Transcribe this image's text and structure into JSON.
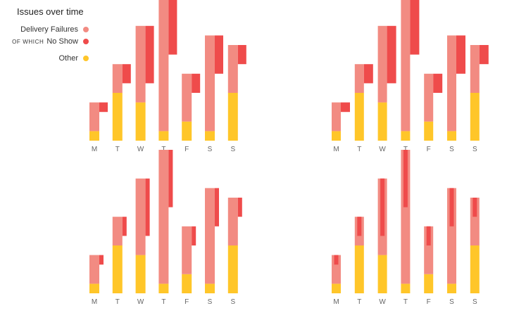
{
  "title": "Issues over time",
  "legend": {
    "delivery": "Delivery Failures",
    "prefix": "OF WHICH",
    "noshow": "No Show",
    "other": "Other"
  },
  "colors": {
    "delivery": "#F28B82",
    "noshow": "#EF4B4B",
    "other": "#FFC629",
    "axis_text": "#666666"
  },
  "chart_data": [
    {
      "type": "bar",
      "layout": "paired-stacked",
      "categories": [
        "M",
        "T",
        "W",
        "T",
        "F",
        "S",
        "S"
      ],
      "series": [
        {
          "name": "Other",
          "values": [
            1,
            5,
            4,
            1,
            2,
            1,
            5
          ]
        },
        {
          "name": "Delivery Failures",
          "values": [
            2,
            1,
            2,
            8,
            3,
            6,
            3
          ]
        },
        {
          "name": "No Show",
          "values": [
            1,
            2,
            6,
            6,
            2,
            4,
            2
          ]
        }
      ],
      "ylim": [
        0,
        11
      ]
    },
    {
      "type": "bar",
      "layout": "narrow-stacked",
      "categories": [
        "M",
        "T",
        "W",
        "T",
        "F",
        "S",
        "S"
      ],
      "series": [
        {
          "name": "Other",
          "values": [
            1,
            5,
            4,
            1,
            2,
            1,
            5
          ]
        },
        {
          "name": "Delivery Failures",
          "values": [
            2,
            1,
            2,
            8,
            3,
            6,
            3
          ]
        },
        {
          "name": "No Show",
          "values": [
            1,
            2,
            6,
            6,
            2,
            4,
            2
          ]
        }
      ],
      "ylim": [
        0,
        11
      ]
    },
    {
      "type": "bar",
      "layout": "paired-stacked-thin",
      "categories": [
        "M",
        "T",
        "W",
        "T",
        "F",
        "S",
        "S"
      ],
      "series": [
        {
          "name": "Other",
          "values": [
            1,
            5,
            4,
            1,
            2,
            1,
            5
          ]
        },
        {
          "name": "Delivery Failures",
          "values": [
            2,
            1,
            2,
            8,
            3,
            6,
            3
          ]
        },
        {
          "name": "No Show",
          "values": [
            1,
            2,
            6,
            6,
            2,
            4,
            2
          ]
        }
      ],
      "ylim": [
        0,
        11
      ]
    },
    {
      "type": "bar",
      "layout": "nested",
      "categories": [
        "M",
        "T",
        "W",
        "T",
        "F",
        "S",
        "S"
      ],
      "series": [
        {
          "name": "Other",
          "values": [
            1,
            5,
            4,
            1,
            2,
            1,
            5
          ]
        },
        {
          "name": "Delivery Failures",
          "values": [
            2,
            1,
            2,
            8,
            3,
            6,
            3
          ]
        },
        {
          "name": "No Show",
          "values": [
            1,
            2,
            6,
            6,
            2,
            4,
            2
          ]
        }
      ],
      "ylim": [
        0,
        11
      ]
    }
  ]
}
